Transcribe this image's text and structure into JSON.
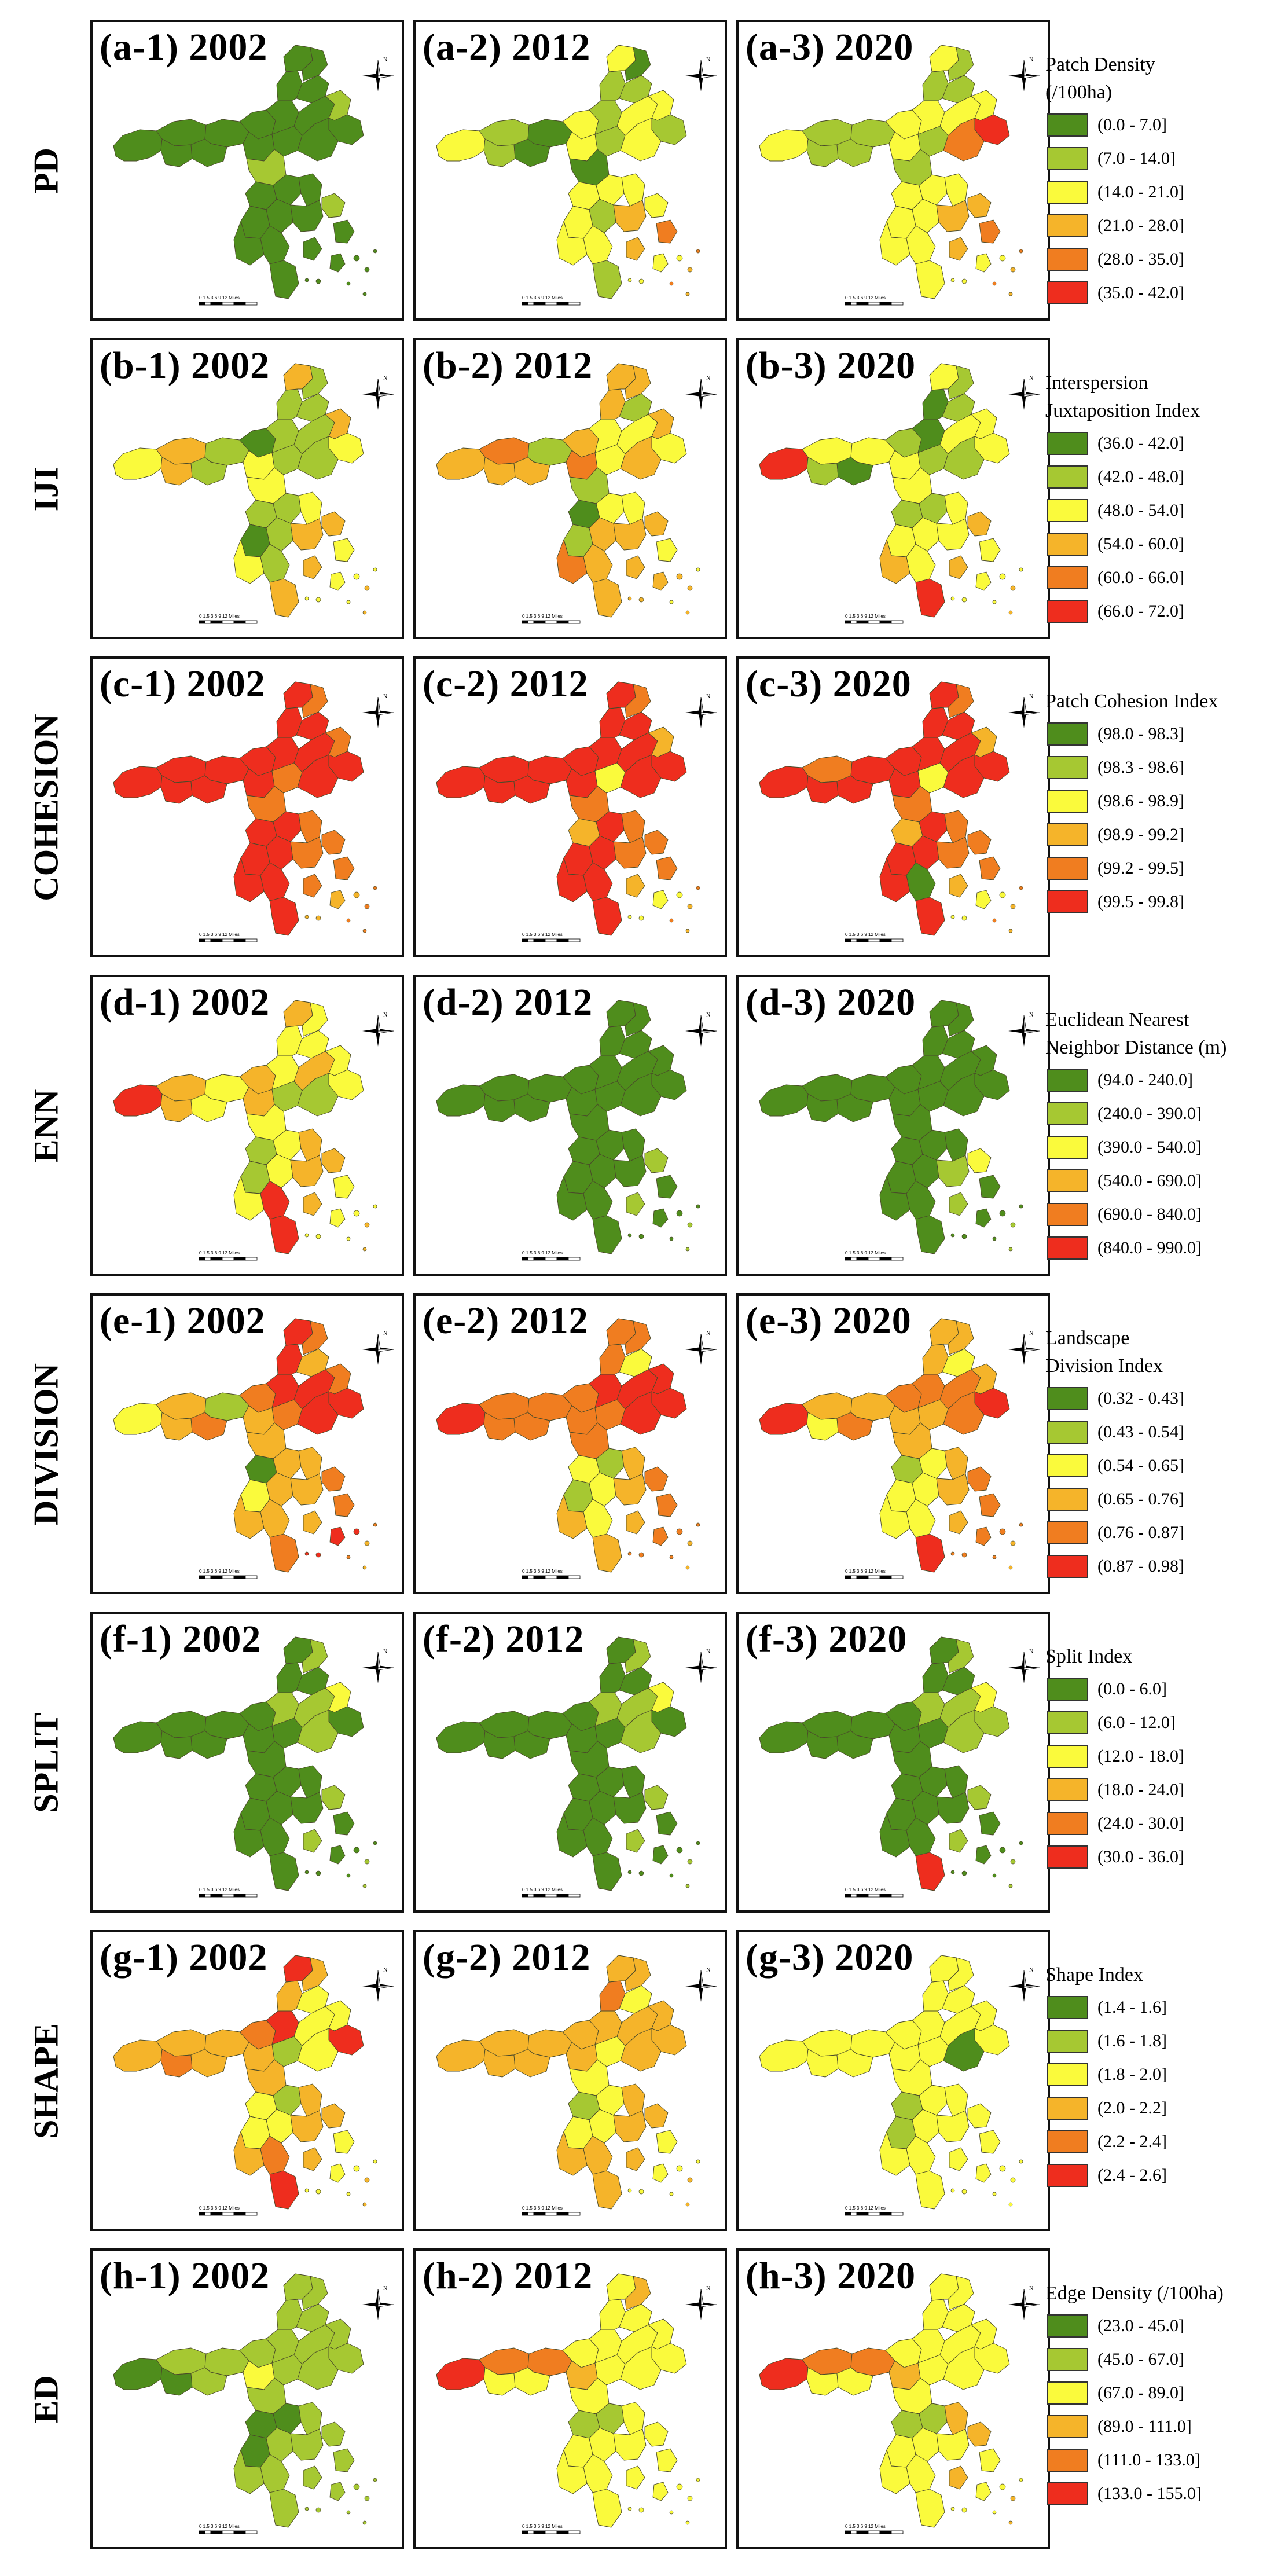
{
  "palette": [
    "#4f8d1c",
    "#a6c832",
    "#fafa3c",
    "#f5b42a",
    "#f07d20",
    "#ee2d1e"
  ],
  "compass_label": "N",
  "scale_label": "0 1.5 3   6   9   12  Miles",
  "rows": [
    {
      "key": "PD",
      "row_label": "PD",
      "legend_title": [
        "Patch Density",
        "(/100ha)"
      ],
      "legend": [
        "(0.0 - 7.0]",
        "(7.0 - 14.0]",
        "(14.0 - 21.0]",
        "(21.0 - 28.0]",
        "(28.0 - 35.0]",
        "(35.0 - 42.0]"
      ],
      "panels": [
        {
          "title": "(a-1) 2002",
          "classes": [
            0,
            0,
            0,
            0,
            0,
            0,
            0,
            0,
            0,
            0,
            0,
            0,
            0,
            0,
            1,
            0,
            0,
            1,
            0,
            0,
            0,
            0,
            0,
            0,
            0,
            0,
            1,
            0,
            0,
            0,
            0
          ]
        },
        {
          "title": "(a-2) 2012",
          "classes": [
            2,
            1,
            1,
            0,
            0,
            2,
            1,
            1,
            2,
            0,
            1,
            2,
            1,
            2,
            2,
            1,
            2,
            0,
            2,
            2,
            2,
            1,
            2,
            2,
            1,
            2,
            2,
            3,
            4,
            3,
            2
          ]
        },
        {
          "title": "(a-3) 2020",
          "classes": [
            2,
            1,
            1,
            1,
            1,
            2,
            2,
            1,
            2,
            1,
            1,
            2,
            1,
            2,
            2,
            5,
            4,
            1,
            2,
            2,
            2,
            2,
            2,
            2,
            2,
            2,
            3,
            3,
            4,
            3,
            2
          ]
        }
      ]
    },
    {
      "key": "IJI",
      "row_label": "IJI",
      "legend_title": [
        "Interspersion",
        "Juxtaposition Index"
      ],
      "legend": [
        "(36.0 - 42.0]",
        "(42.0 - 48.0]",
        "(48.0 - 54.0]",
        "(54.0 - 60.0]",
        "(60.0 - 66.0]",
        "(66.0 - 72.0]"
      ],
      "panels": [
        {
          "title": "(b-1) 2002",
          "classes": [
            2,
            3,
            3,
            1,
            1,
            0,
            1,
            1,
            3,
            1,
            1,
            2,
            1,
            1,
            3,
            2,
            1,
            2,
            1,
            1,
            0,
            1,
            2,
            1,
            3,
            2,
            3,
            3,
            2,
            3,
            2
          ]
        },
        {
          "title": "(b-2) 2012",
          "classes": [
            3,
            4,
            3,
            1,
            3,
            3,
            2,
            3,
            3,
            3,
            1,
            4,
            2,
            2,
            3,
            2,
            3,
            1,
            0,
            2,
            1,
            3,
            4,
            3,
            3,
            2,
            3,
            3,
            2,
            3,
            3
          ]
        },
        {
          "title": "(b-3) 2020",
          "classes": [
            5,
            2,
            1,
            2,
            0,
            1,
            0,
            0,
            2,
            1,
            1,
            2,
            1,
            2,
            2,
            2,
            1,
            2,
            1,
            1,
            2,
            2,
            3,
            2,
            5,
            2,
            3,
            2,
            2,
            3,
            2
          ]
        }
      ]
    },
    {
      "key": "COHESION",
      "row_label": "COHESION",
      "legend_title": [
        "Patch Cohesion Index"
      ],
      "legend": [
        "(98.0 - 98.3]",
        "(98.3 - 98.6]",
        "(98.6 - 98.9]",
        "(98.9 - 99.2]",
        "(99.2 - 99.5]",
        "(99.5 - 99.8]"
      ],
      "panels": [
        {
          "title": "(c-1) 2002",
          "classes": [
            5,
            5,
            5,
            5,
            5,
            5,
            5,
            5,
            5,
            4,
            5,
            5,
            4,
            5,
            4,
            5,
            5,
            4,
            5,
            5,
            5,
            5,
            5,
            5,
            5,
            4,
            4,
            4,
            4,
            4,
            3
          ]
        },
        {
          "title": "(c-2) 2012",
          "classes": [
            5,
            5,
            5,
            5,
            5,
            5,
            5,
            5,
            5,
            4,
            5,
            5,
            2,
            5,
            3,
            5,
            5,
            4,
            3,
            5,
            5,
            5,
            5,
            5,
            5,
            4,
            4,
            4,
            4,
            3,
            2
          ]
        },
        {
          "title": "(c-3) 2020",
          "classes": [
            5,
            4,
            5,
            5,
            5,
            5,
            5,
            5,
            5,
            4,
            5,
            5,
            2,
            5,
            3,
            5,
            5,
            4,
            3,
            5,
            5,
            5,
            5,
            0,
            5,
            4,
            4,
            4,
            4,
            3,
            2
          ]
        }
      ]
    },
    {
      "key": "ENN",
      "row_label": "ENN",
      "legend_title": [
        "Euclidean Nearest",
        "Neighbor Distance (m)"
      ],
      "legend": [
        "(94.0 - 240.0]",
        "(240.0 - 390.0]",
        "(390.0 - 540.0]",
        "(540.0 - 690.0]",
        "(690.0 - 840.0]",
        "(840.0 - 990.0]"
      ],
      "panels": [
        {
          "title": "(d-1) 2002",
          "classes": [
            5,
            3,
            3,
            2,
            2,
            3,
            2,
            2,
            3,
            2,
            2,
            3,
            1,
            3,
            2,
            2,
            1,
            2,
            1,
            2,
            1,
            2,
            2,
            5,
            5,
            3,
            3,
            3,
            2,
            3,
            2
          ]
        },
        {
          "title": "(d-2) 2012",
          "classes": [
            0,
            0,
            0,
            0,
            0,
            0,
            0,
            0,
            0,
            0,
            0,
            0,
            0,
            0,
            0,
            0,
            0,
            0,
            0,
            0,
            0,
            0,
            0,
            0,
            0,
            0,
            1,
            0,
            0,
            1,
            0
          ]
        },
        {
          "title": "(d-3) 2020",
          "classes": [
            0,
            0,
            0,
            0,
            0,
            0,
            0,
            0,
            0,
            0,
            0,
            0,
            0,
            0,
            0,
            0,
            0,
            0,
            0,
            0,
            0,
            0,
            0,
            0,
            0,
            0,
            2,
            1,
            0,
            1,
            0
          ]
        }
      ]
    },
    {
      "key": "DIVISION",
      "row_label": "DIVISION",
      "legend_title": [
        "Landscape",
        "Division Index"
      ],
      "legend": [
        "(0.32 - 0.43]",
        "(0.43 - 0.54]",
        "(0.54 - 0.65]",
        "(0.65 - 0.76]",
        "(0.76 - 0.87]",
        "(0.87 - 0.98]"
      ],
      "panels": [
        {
          "title": "(e-1) 2002",
          "classes": [
            2,
            3,
            3,
            1,
            4,
            4,
            5,
            5,
            5,
            4,
            3,
            3,
            4,
            5,
            4,
            5,
            5,
            3,
            0,
            3,
            2,
            3,
            3,
            3,
            4,
            3,
            4,
            3,
            4,
            3,
            5
          ]
        },
        {
          "title": "(e-2) 2012",
          "classes": [
            5,
            4,
            4,
            4,
            4,
            4,
            5,
            4,
            4,
            4,
            2,
            4,
            4,
            5,
            5,
            5,
            5,
            4,
            2,
            1,
            1,
            2,
            3,
            2,
            3,
            3,
            4,
            3,
            4,
            3,
            4
          ]
        },
        {
          "title": "(e-3) 2020",
          "classes": [
            5,
            3,
            2,
            3,
            4,
            4,
            4,
            3,
            3,
            3,
            2,
            3,
            3,
            4,
            3,
            5,
            4,
            3,
            1,
            2,
            2,
            2,
            2,
            2,
            5,
            3,
            4,
            3,
            4,
            3,
            4
          ]
        }
      ]
    },
    {
      "key": "SPLIT",
      "row_label": "SPLIT",
      "legend_title": [
        "Split Index"
      ],
      "legend": [
        "(0.0 - 6.0]",
        "(6.0 - 12.0]",
        "(12.0 - 18.0]",
        "(18.0 - 24.0]",
        "(24.0 - 30.0]",
        "(30.0 - 36.0]"
      ],
      "panels": [
        {
          "title": "(f-1) 2002",
          "classes": [
            0,
            0,
            0,
            0,
            0,
            0,
            1,
            0,
            0,
            1,
            0,
            0,
            0,
            1,
            2,
            0,
            1,
            0,
            0,
            0,
            0,
            0,
            0,
            0,
            0,
            0,
            1,
            0,
            0,
            1,
            0
          ]
        },
        {
          "title": "(f-2) 2012",
          "classes": [
            0,
            0,
            0,
            0,
            0,
            0,
            1,
            0,
            0,
            1,
            0,
            0,
            0,
            1,
            2,
            0,
            1,
            0,
            0,
            0,
            0,
            0,
            0,
            0,
            0,
            0,
            1,
            0,
            0,
            1,
            0
          ]
        },
        {
          "title": "(f-3) 2020",
          "classes": [
            0,
            0,
            0,
            0,
            0,
            0,
            1,
            0,
            0,
            1,
            0,
            0,
            0,
            1,
            2,
            1,
            1,
            0,
            0,
            0,
            0,
            0,
            0,
            0,
            5,
            0,
            1,
            0,
            0,
            1,
            0
          ]
        }
      ]
    },
    {
      "key": "SHAPE",
      "row_label": "SHAPE",
      "legend_title": [
        "Shape Index"
      ],
      "legend": [
        "(1.4 - 1.6]",
        "(1.6 - 1.8]",
        "(1.8 - 2.0]",
        "(2.0 - 2.2]",
        "(2.2 - 2.4]",
        "(2.4 - 2.6]"
      ],
      "panels": [
        {
          "title": "(g-1) 2002",
          "classes": [
            3,
            3,
            4,
            3,
            3,
            4,
            5,
            3,
            5,
            3,
            2,
            3,
            1,
            2,
            2,
            5,
            2,
            3,
            2,
            1,
            2,
            2,
            3,
            4,
            5,
            3,
            3,
            3,
            2,
            3,
            2
          ]
        },
        {
          "title": "(g-2) 2012",
          "classes": [
            3,
            3,
            3,
            3,
            3,
            3,
            3,
            4,
            3,
            3,
            2,
            3,
            2,
            3,
            3,
            3,
            3,
            2,
            1,
            2,
            2,
            2,
            3,
            3,
            3,
            3,
            3,
            3,
            2,
            3,
            2
          ]
        },
        {
          "title": "(g-3) 2020",
          "classes": [
            2,
            2,
            2,
            2,
            2,
            2,
            2,
            2,
            2,
            2,
            2,
            2,
            2,
            2,
            2,
            2,
            0,
            2,
            1,
            2,
            1,
            2,
            2,
            2,
            2,
            2,
            2,
            2,
            2,
            2,
            2
          ]
        }
      ]
    },
    {
      "key": "ED",
      "row_label": "ED",
      "legend_title": [
        "Edge Density (/100ha)"
      ],
      "legend": [
        "(23.0 - 45.0]",
        "(45.0 - 67.0]",
        "(67.0 - 89.0]",
        "(89.0 - 111.0]",
        "(111.0 - 133.0]",
        "(133.0 - 155.0]"
      ],
      "panels": [
        {
          "title": "(h-1) 2002",
          "classes": [
            0,
            1,
            0,
            1,
            1,
            1,
            1,
            1,
            1,
            1,
            1,
            2,
            1,
            1,
            1,
            1,
            1,
            1,
            0,
            0,
            0,
            1,
            1,
            1,
            1,
            1,
            1,
            1,
            1,
            1,
            1
          ]
        },
        {
          "title": "(h-2) 2012",
          "classes": [
            5,
            4,
            2,
            4,
            2,
            2,
            2,
            2,
            2,
            3,
            2,
            3,
            2,
            2,
            2,
            2,
            2,
            2,
            1,
            1,
            2,
            2,
            2,
            2,
            2,
            2,
            2,
            2,
            2,
            2,
            2
          ]
        },
        {
          "title": "(h-3) 2020",
          "classes": [
            5,
            4,
            2,
            4,
            2,
            2,
            2,
            2,
            2,
            2,
            2,
            3,
            2,
            2,
            2,
            2,
            2,
            2,
            1,
            1,
            2,
            2,
            2,
            2,
            2,
            3,
            3,
            2,
            2,
            3,
            2
          ]
        }
      ]
    }
  ]
}
